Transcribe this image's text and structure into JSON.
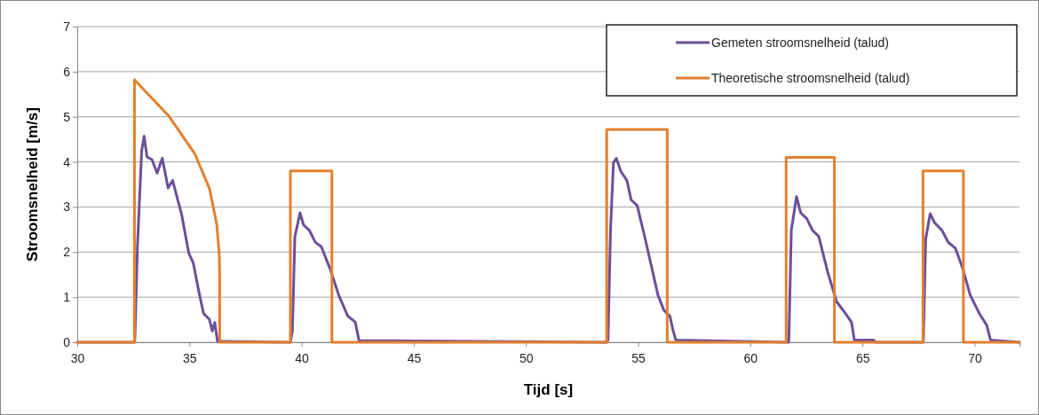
{
  "chart_data": {
    "type": "line",
    "xlabel": "Tijd [s]",
    "ylabel": "Stroomsnelheid [m/s]",
    "xlim": [
      30,
      72
    ],
    "ylim": [
      0,
      7
    ],
    "xticks": [
      30,
      35,
      40,
      45,
      50,
      55,
      60,
      65,
      70
    ],
    "yticks": [
      0,
      1,
      2,
      3,
      4,
      5,
      6,
      7
    ],
    "grid": "y",
    "legend": "top right",
    "marker": "none",
    "line_style": "solid",
    "series": [
      {
        "name": "Gemeten stroomsnelheid (talud)",
        "color": "#6b4f98",
        "x": [
          30,
          32.56,
          32.58,
          32.68,
          32.87,
          32.98,
          33.11,
          33.33,
          33.56,
          33.79,
          34.05,
          34.25,
          34.65,
          34.97,
          35.17,
          35.43,
          35.63,
          35.89,
          36.02,
          36.13,
          36.25,
          39.5,
          39.59,
          39.7,
          39.93,
          40.09,
          40.35,
          40.61,
          40.88,
          41.27,
          41.66,
          42.06,
          42.39,
          42.56,
          53.6,
          53.66,
          53.77,
          53.9,
          54.03,
          54.23,
          54.5,
          54.69,
          54.96,
          55.29,
          55.56,
          55.89,
          56.15,
          56.42,
          56.55,
          56.68,
          61.7,
          61.72,
          61.83,
          62.06,
          62.25,
          62.52,
          62.78,
          63.05,
          63.45,
          63.85,
          64.24,
          64.51,
          64.64,
          65.5,
          65.6,
          67.7,
          67.72,
          67.82,
          68.02,
          68.22,
          68.55,
          68.82,
          69.15,
          69.48,
          69.81,
          70.21,
          70.54,
          70.71,
          72
        ],
        "values": [
          0,
          0,
          0.25,
          2.08,
          4.24,
          4.57,
          4.11,
          4.05,
          3.75,
          4.08,
          3.42,
          3.59,
          2.84,
          1.98,
          1.76,
          1.1,
          0.64,
          0.51,
          0.25,
          0.44,
          0.02,
          0,
          0.25,
          2.34,
          2.87,
          2.6,
          2.48,
          2.22,
          2.12,
          1.63,
          1.04,
          0.58,
          0.45,
          0.04,
          0,
          0.05,
          2.48,
          3.98,
          4.08,
          3.79,
          3.59,
          3.16,
          3.03,
          2.35,
          1.76,
          1.04,
          0.71,
          0.58,
          0.28,
          0.05,
          0,
          0.05,
          2.48,
          3.23,
          2.87,
          2.74,
          2.48,
          2.35,
          1.56,
          0.9,
          0.64,
          0.45,
          0.05,
          0.05,
          0,
          0,
          0.05,
          2.29,
          2.85,
          2.65,
          2.48,
          2.22,
          2.08,
          1.62,
          1.04,
          0.64,
          0.38,
          0.05,
          0
        ]
      },
      {
        "name": "Theoretische stroomsnelheid (talud)",
        "color": "#e3802f",
        "x": [
          30,
          32.55,
          32.55,
          34.06,
          35.24,
          35.9,
          36.22,
          36.33,
          36.35,
          36.35,
          39.5,
          39.5,
          41.35,
          41.35,
          53.6,
          53.6,
          56.3,
          56.3,
          61.6,
          61.6,
          63.75,
          63.75,
          67.7,
          67.7,
          69.5,
          69.5,
          72
        ],
        "values": [
          0,
          0,
          5.82,
          5.03,
          4.18,
          3.4,
          2.61,
          1.95,
          1.43,
          0,
          0,
          3.8,
          3.8,
          0,
          0,
          4.72,
          4.72,
          0,
          0,
          4.1,
          4.1,
          0,
          0,
          3.8,
          3.8,
          0,
          0
        ]
      }
    ]
  }
}
